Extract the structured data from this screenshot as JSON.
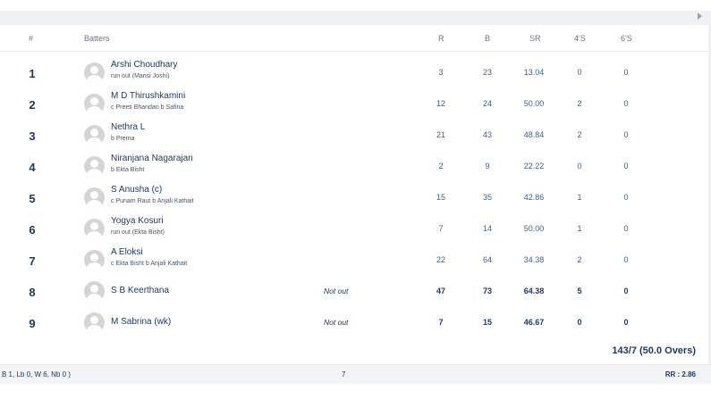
{
  "header": {
    "num": "#",
    "batters": "Batters",
    "runs": "R",
    "balls": "B",
    "sr": "SR",
    "fours": "4'S",
    "sixes": "6'S"
  },
  "batters": [
    {
      "num": "1",
      "name": "Arshi Choudhary",
      "dismissal": "run out (Mansi Joshi)",
      "status": "",
      "r": "3",
      "b": "23",
      "sr": "13.04",
      "fours": "0",
      "sixes": "0"
    },
    {
      "num": "2",
      "name": "M D Thirushkamini",
      "dismissal": "c Preeti Bhandari b Safina",
      "status": "",
      "r": "12",
      "b": "24",
      "sr": "50.00",
      "fours": "2",
      "sixes": "0"
    },
    {
      "num": "3",
      "name": "Nethra L",
      "dismissal": "b Prema",
      "status": "",
      "r": "21",
      "b": "43",
      "sr": "48.84",
      "fours": "2",
      "sixes": "0"
    },
    {
      "num": "4",
      "name": "Niranjana Nagarajan",
      "dismissal": "b Ekta Bisht",
      "status": "",
      "r": "2",
      "b": "9",
      "sr": "22.22",
      "fours": "0",
      "sixes": "0"
    },
    {
      "num": "5",
      "name": "S Anusha (c)",
      "dismissal": "c Punam Raut b Anjali Kathait",
      "status": "",
      "r": "15",
      "b": "35",
      "sr": "42.86",
      "fours": "1",
      "sixes": "0"
    },
    {
      "num": "6",
      "name": "Yogya Kosuri",
      "dismissal": "run out (Ekta Bisht)",
      "status": "",
      "r": "7",
      "b": "14",
      "sr": "50.00",
      "fours": "1",
      "sixes": "0"
    },
    {
      "num": "7",
      "name": "A Eloksi",
      "dismissal": "c Ekta Bisht b Anjali Kathait",
      "status": "",
      "r": "22",
      "b": "64",
      "sr": "34.38",
      "fours": "2",
      "sixes": "0"
    },
    {
      "num": "8",
      "name": "S B Keerthana",
      "dismissal": "",
      "status": "Not out",
      "r": "47",
      "b": "73",
      "sr": "64.38",
      "fours": "5",
      "sixes": "0"
    },
    {
      "num": "9",
      "name": "M Sabrina (wk)",
      "dismissal": "",
      "status": "Not out",
      "r": "7",
      "b": "15",
      "sr": "46.67",
      "fours": "0",
      "sixes": "0"
    }
  ],
  "total": "143/7 (50.0 Overs)",
  "footer": {
    "extras_detail": "B 1, Lb 0, W 6, Nb 0 )",
    "extras_total": "7",
    "run_rate": "RR : 2.86"
  }
}
